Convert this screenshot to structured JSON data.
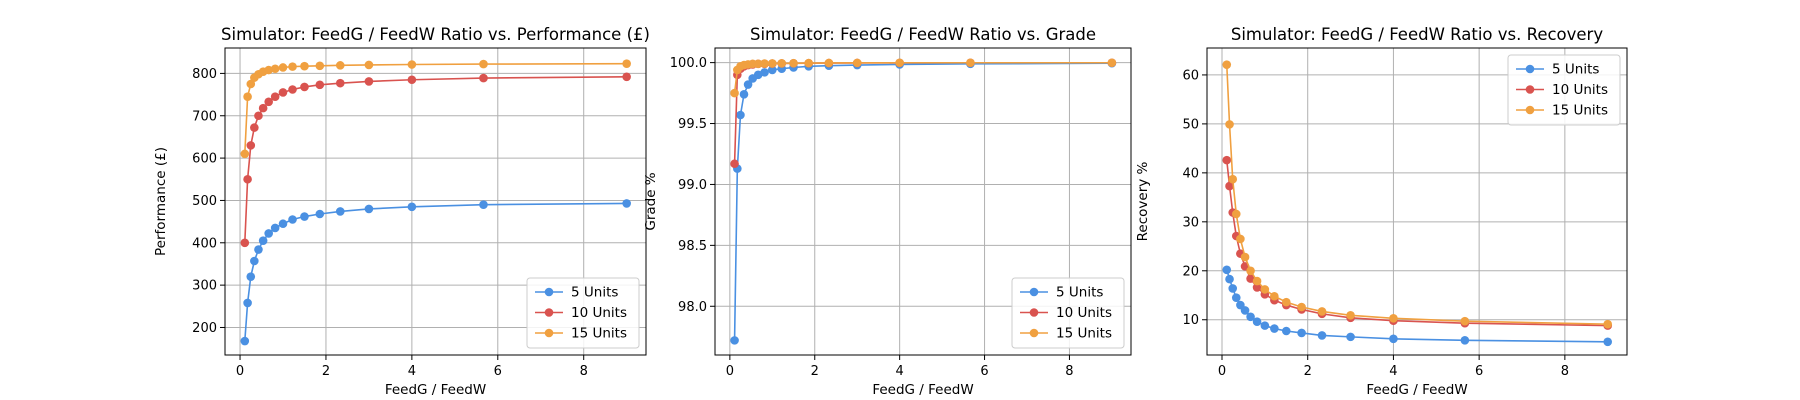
{
  "colors": {
    "5 Units": "#4a90e2",
    "10 Units": "#d9534f",
    "15 Units": "#f0a040"
  },
  "chart_data": [
    {
      "type": "line",
      "title": "Simulator: FeedG / FeedW Ratio vs. Performance (£)",
      "xlabel": "FeedG / FeedW",
      "ylabel": "Performance (£)",
      "xlim": [
        -0.35,
        9.45
      ],
      "ylim": [
        135,
        860
      ],
      "xticks": [
        0,
        2,
        4,
        6,
        8
      ],
      "yticks": [
        200,
        300,
        400,
        500,
        600,
        700,
        800
      ],
      "grid": true,
      "legend_loc": "lower-right",
      "x": [
        0.111,
        0.176,
        0.25,
        0.333,
        0.429,
        0.538,
        0.667,
        0.818,
        1.0,
        1.222,
        1.5,
        1.857,
        2.333,
        3.0,
        4.0,
        5.667,
        9.0
      ],
      "series": [
        {
          "name": "5 Units",
          "values": [
            168,
            258,
            320,
            357,
            384,
            405,
            422,
            435,
            445,
            455,
            462,
            468,
            474,
            480,
            485,
            490,
            493
          ]
        },
        {
          "name": "10 Units",
          "values": [
            400,
            550,
            630,
            672,
            700,
            718,
            733,
            745,
            755,
            762,
            768,
            773,
            777,
            781,
            785,
            789,
            792
          ]
        },
        {
          "name": "15 Units",
          "values": [
            610,
            745,
            775,
            790,
            798,
            804,
            808,
            811,
            814,
            816,
            817,
            818,
            819,
            820,
            821,
            822,
            823
          ]
        }
      ]
    },
    {
      "type": "line",
      "title": "Simulator: FeedG / FeedW Ratio vs. Grade",
      "xlabel": "FeedG / FeedW",
      "ylabel": "Grade %",
      "xlim": [
        -0.35,
        9.45
      ],
      "ylim": [
        97.6,
        100.12
      ],
      "xticks": [
        0,
        2,
        4,
        6,
        8
      ],
      "yticks": [
        98.0,
        98.5,
        99.0,
        99.5,
        100.0
      ],
      "ytick_labels": [
        "98.0",
        "98.5",
        "99.0",
        "99.5",
        "100.0"
      ],
      "grid": true,
      "legend_loc": "lower-right",
      "x": [
        0.111,
        0.176,
        0.25,
        0.333,
        0.429,
        0.538,
        0.667,
        0.818,
        1.0,
        1.222,
        1.5,
        1.857,
        2.333,
        3.0,
        4.0,
        5.667,
        9.0
      ],
      "series": [
        {
          "name": "5 Units",
          "values": [
            97.72,
            99.13,
            99.57,
            99.74,
            99.82,
            99.87,
            99.9,
            99.92,
            99.94,
            99.95,
            99.96,
            99.97,
            99.975,
            99.98,
            99.985,
            99.99,
            99.995
          ]
        },
        {
          "name": "10 Units",
          "values": [
            99.17,
            99.9,
            99.95,
            99.97,
            99.98,
            99.985,
            99.99,
            99.99,
            99.992,
            99.993,
            99.994,
            99.995,
            99.996,
            99.997,
            99.998,
            99.999,
            99.999
          ]
        },
        {
          "name": "15 Units",
          "values": [
            99.75,
            99.94,
            99.97,
            99.98,
            99.985,
            99.99,
            99.99,
            99.992,
            99.993,
            99.994,
            99.995,
            99.996,
            99.997,
            99.998,
            99.999,
            99.999,
            99.999
          ]
        }
      ]
    },
    {
      "type": "line",
      "title": "Simulator: FeedG / FeedW Ratio vs. Recovery",
      "xlabel": "FeedG / FeedW",
      "ylabel": "Recovery %",
      "xlim": [
        -0.35,
        9.45
      ],
      "ylim": [
        2.8,
        65.5
      ],
      "xticks": [
        0,
        2,
        4,
        6,
        8
      ],
      "yticks": [
        10,
        20,
        30,
        40,
        50,
        60
      ],
      "grid": true,
      "legend_loc": "upper-right",
      "x": [
        0.111,
        0.176,
        0.25,
        0.333,
        0.429,
        0.538,
        0.667,
        0.818,
        1.0,
        1.222,
        1.5,
        1.857,
        2.333,
        3.0,
        4.0,
        5.667,
        9.0
      ],
      "series": [
        {
          "name": "5 Units",
          "values": [
            20.2,
            18.3,
            16.4,
            14.5,
            13.0,
            11.9,
            10.6,
            9.6,
            8.8,
            8.2,
            7.7,
            7.3,
            6.8,
            6.5,
            6.1,
            5.8,
            5.5
          ]
        },
        {
          "name": "10 Units",
          "values": [
            42.6,
            37.3,
            31.9,
            27.1,
            23.5,
            20.9,
            18.4,
            16.6,
            15.2,
            14.0,
            13.0,
            12.1,
            11.2,
            10.4,
            9.8,
            9.3,
            8.8
          ]
        },
        {
          "name": "15 Units",
          "values": [
            62.1,
            49.9,
            38.7,
            31.6,
            26.5,
            22.8,
            20.0,
            17.9,
            16.2,
            14.8,
            13.6,
            12.6,
            11.7,
            10.9,
            10.3,
            9.7,
            9.1
          ]
        }
      ]
    }
  ]
}
